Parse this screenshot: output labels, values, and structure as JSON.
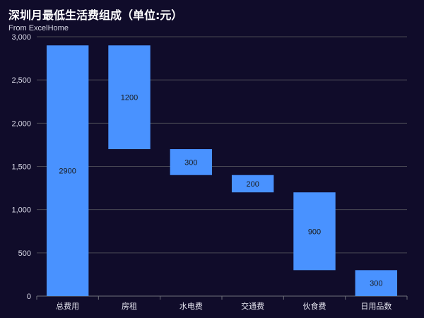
{
  "chart_data": {
    "type": "bar",
    "subtype": "waterfall",
    "title": "深圳月最低生活费组成（单位:元）",
    "subtitle": "From ExcelHome",
    "xlabel": "",
    "ylabel": "",
    "categories": [
      "总费用",
      "房租",
      "水电费",
      "交通费",
      "伙食费",
      "日用品数"
    ],
    "values": [
      2900,
      1200,
      300,
      200,
      900,
      300
    ],
    "bases": [
      0,
      1700,
      1400,
      1200,
      300,
      0
    ],
    "data_labels": [
      "2900",
      "1200",
      "300",
      "200",
      "900",
      "300"
    ],
    "ylim": [
      0,
      3000
    ],
    "y_ticks": [
      0,
      500,
      1000,
      1500,
      2000,
      2500,
      3000
    ],
    "y_tick_labels": [
      "0",
      "500",
      "1,000",
      "1,500",
      "2,000",
      "2,500",
      "3,000"
    ],
    "grid": true,
    "legend": "none",
    "colors": {
      "background": "#100c2a",
      "bar": "#4992ff",
      "grid": "#484753",
      "axis_text": "#d8d8e6"
    }
  }
}
